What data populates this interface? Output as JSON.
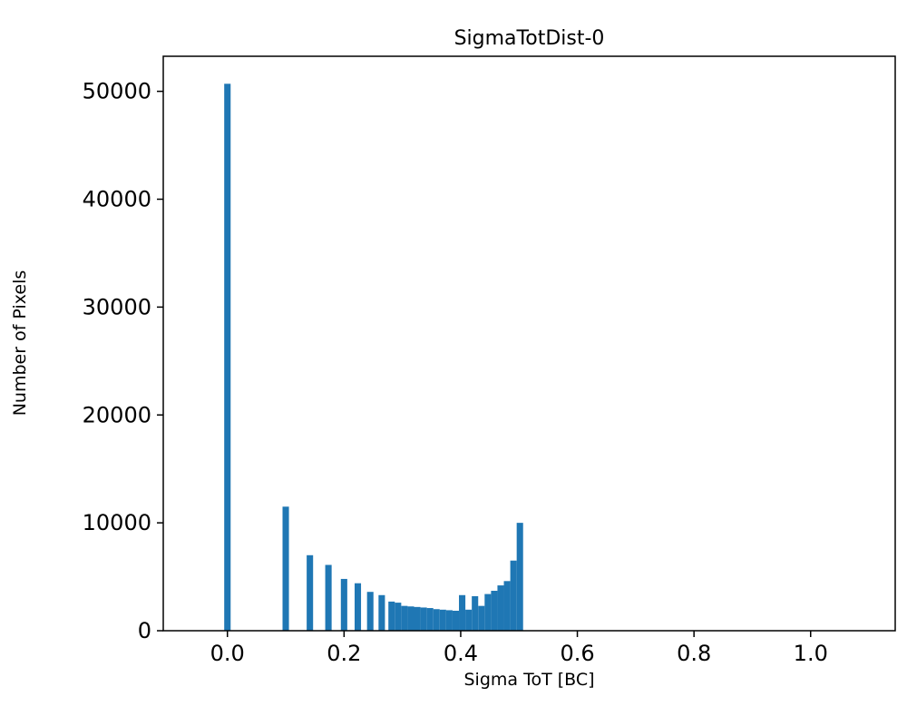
{
  "chart_data": {
    "type": "bar",
    "title": "SigmaTotDist-0",
    "xlabel": "Sigma ToT [BC]",
    "ylabel": "Number of Pixels",
    "bar_color": "#1f77b4",
    "grid": false,
    "legend": null,
    "xlim": [
      -0.11,
      1.145
    ],
    "ylim": [
      0,
      53250
    ],
    "xticks": [
      0.0,
      0.2,
      0.4,
      0.6,
      0.8,
      1.0
    ],
    "yticks": [
      0,
      10000,
      20000,
      30000,
      40000,
      50000
    ],
    "bar_width": 0.011,
    "bars": [
      {
        "x": 0.0,
        "count": 50700
      },
      {
        "x": 0.1,
        "count": 11500
      },
      {
        "x": 0.1414,
        "count": 7000
      },
      {
        "x": 0.1732,
        "count": 6100
      },
      {
        "x": 0.2,
        "count": 4800
      },
      {
        "x": 0.2236,
        "count": 4400
      },
      {
        "x": 0.2449,
        "count": 3600
      },
      {
        "x": 0.2646,
        "count": 3300
      },
      {
        "x": 0.2815,
        "count": 2700
      },
      {
        "x": 0.2925,
        "count": 2600
      },
      {
        "x": 0.3035,
        "count": 2300
      },
      {
        "x": 0.3145,
        "count": 2250
      },
      {
        "x": 0.3255,
        "count": 2200
      },
      {
        "x": 0.3365,
        "count": 2150
      },
      {
        "x": 0.3475,
        "count": 2100
      },
      {
        "x": 0.3585,
        "count": 2000
      },
      {
        "x": 0.3695,
        "count": 1950
      },
      {
        "x": 0.3805,
        "count": 1900
      },
      {
        "x": 0.3915,
        "count": 1850
      },
      {
        "x": 0.4025,
        "count": 3300
      },
      {
        "x": 0.4135,
        "count": 1950
      },
      {
        "x": 0.4245,
        "count": 3200
      },
      {
        "x": 0.4355,
        "count": 2300
      },
      {
        "x": 0.4465,
        "count": 3400
      },
      {
        "x": 0.4575,
        "count": 3700
      },
      {
        "x": 0.4685,
        "count": 4200
      },
      {
        "x": 0.4795,
        "count": 4600
      },
      {
        "x": 0.4905,
        "count": 6500
      },
      {
        "x": 0.5015,
        "count": 10000
      }
    ]
  }
}
